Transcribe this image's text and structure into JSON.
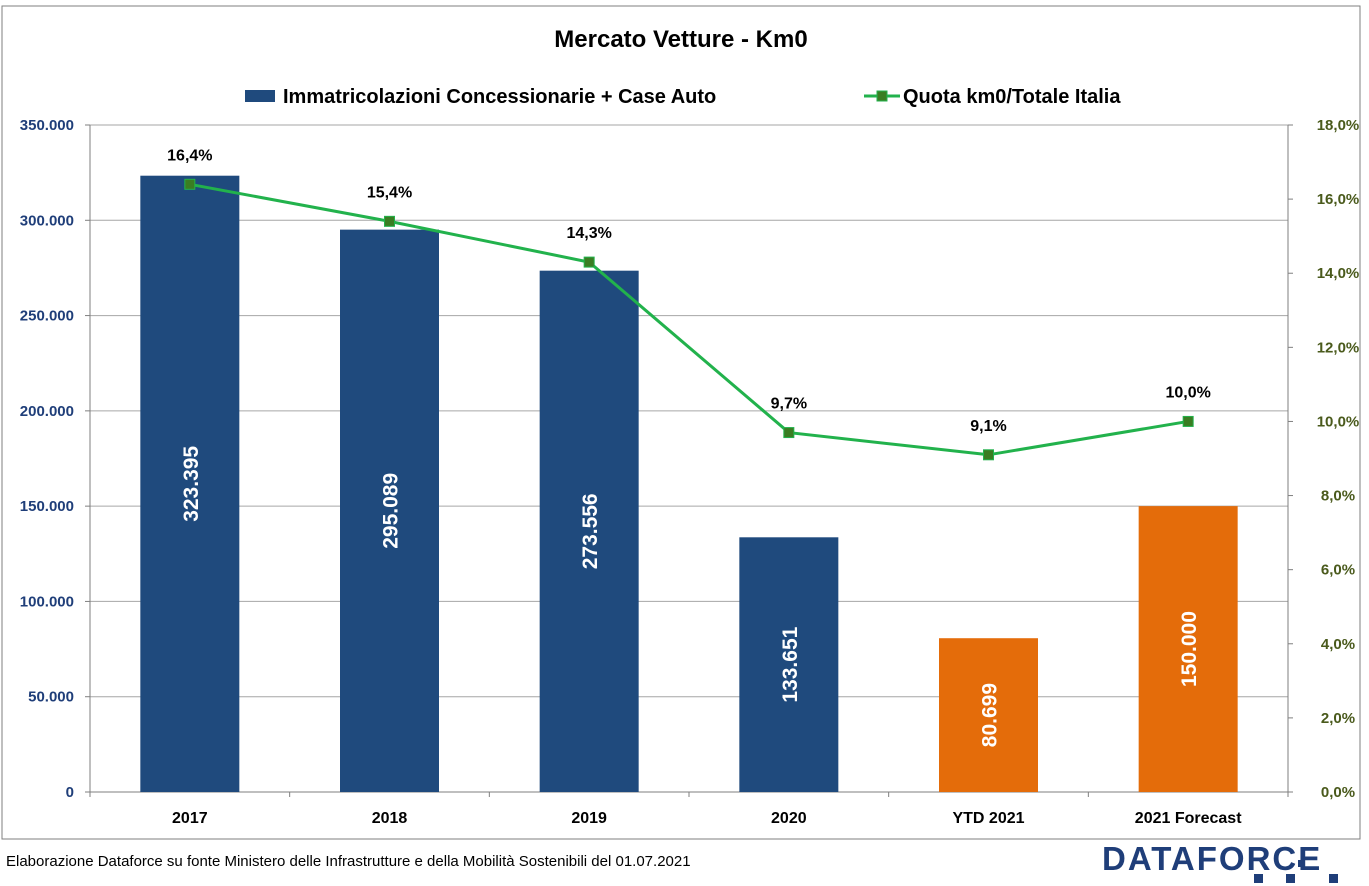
{
  "title": "Mercato Vetture - Km0",
  "legend": {
    "bars": "Immatricolazioni Concessionarie + Case Auto",
    "line": "Quota km0/Totale Italia"
  },
  "footer": "Elaborazione Dataforce su fonte Ministero delle Infrastrutture e della Mobilità Sostenibili del 01.07.2021",
  "brand": "DATAFORCE",
  "colors": {
    "bar_actual": "#1f4a7d",
    "bar_forecast": "#e46c0a",
    "line": "#22b24c",
    "marker": "#3a7d22",
    "grid": "#a6a6a6"
  },
  "chart_data": {
    "type": "bar",
    "categories": [
      "2017",
      "2018",
      "2019",
      "2020",
      "YTD 2021",
      "2021 Forecast"
    ],
    "series": [
      {
        "name": "Immatricolazioni Concessionarie + Case Auto",
        "axis": "left",
        "values": [
          323395,
          295089,
          273556,
          133651,
          80699,
          150000
        ],
        "labels": [
          "323.395",
          "295.089",
          "273.556",
          "133.651",
          "80.699",
          "150.000"
        ],
        "bar_colors": [
          "#1f4a7d",
          "#1f4a7d",
          "#1f4a7d",
          "#1f4a7d",
          "#e46c0a",
          "#e46c0a"
        ]
      },
      {
        "name": "Quota km0/Totale Italia",
        "axis": "right",
        "type": "line",
        "values": [
          16.4,
          15.4,
          14.3,
          9.7,
          9.1,
          10.0
        ],
        "labels": [
          "16,4%",
          "15,4%",
          "14,3%",
          "9,7%",
          "9,1%",
          "10,0%"
        ]
      }
    ],
    "y_left": {
      "ylim": [
        0,
        350000
      ],
      "ticks": [
        "0",
        "50.000",
        "100.000",
        "150.000",
        "200.000",
        "250.000",
        "300.000",
        "350.000"
      ]
    },
    "y_right": {
      "ylim": [
        0,
        18
      ],
      "ticks": [
        "0,0%",
        "2,0%",
        "4,0%",
        "6,0%",
        "8,0%",
        "10,0%",
        "12,0%",
        "14,0%",
        "16,0%",
        "18,0%"
      ]
    },
    "grid": true,
    "legend_position": "top"
  }
}
